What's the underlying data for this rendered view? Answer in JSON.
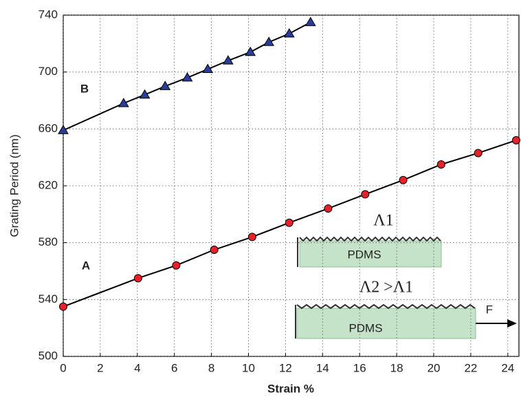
{
  "chart_data": {
    "type": "line",
    "x_label": "Strain %",
    "y_label": "Grating Period (nm)",
    "xlim": [
      0,
      24.6
    ],
    "ylim": [
      500,
      740
    ],
    "xticks": [
      0,
      2,
      4,
      6,
      8,
      10,
      12,
      14,
      16,
      18,
      20,
      22,
      24
    ],
    "yticks": [
      500,
      540,
      580,
      620,
      660,
      700,
      740
    ],
    "grid": true,
    "series": [
      {
        "name": "A",
        "color": "#e8202a",
        "marker": "circle",
        "x": [
          0,
          4.04,
          6.1,
          8.15,
          10.2,
          12.2,
          14.3,
          16.3,
          18.35,
          20.4,
          22.4,
          24.45
        ],
        "values": [
          535,
          555,
          564,
          575,
          584,
          594,
          604,
          614,
          624,
          635,
          643,
          652
        ]
      },
      {
        "name": "B",
        "color": "#2b3d9a",
        "marker": "triangle",
        "x": [
          0,
          3.26,
          4.4,
          5.5,
          6.7,
          7.8,
          8.9,
          10.1,
          11.1,
          12.2,
          13.35
        ],
        "values": [
          659,
          678,
          684,
          690,
          696,
          702,
          708,
          714,
          721,
          727,
          735
        ]
      }
    ],
    "annotations": {
      "top_period": "Λ1",
      "top_material": "PDMS",
      "bottom_period": "Λ2 >Λ1",
      "bottom_material": "PDMS",
      "force": "F"
    }
  }
}
